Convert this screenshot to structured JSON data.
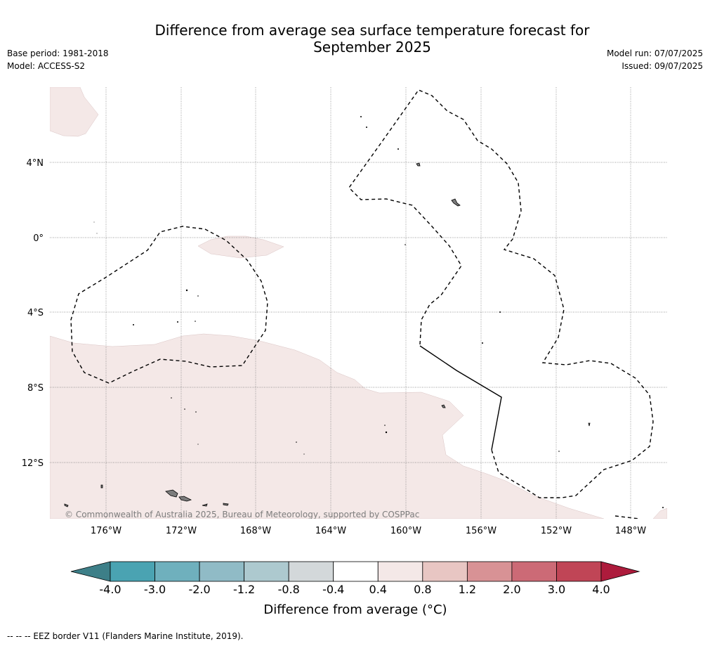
{
  "header": {
    "title_line1": "Difference from average sea surface temperature forecast for",
    "title_line2": "September 2025",
    "base_period": "Base period: 1981-2018",
    "model": "Model: ACCESS-S2",
    "model_run": "Model run: 07/07/2025",
    "issued": "Issued: 09/07/2025"
  },
  "map": {
    "lat_labels": [
      "4°N",
      "0°",
      "4°S",
      "8°S",
      "12°S"
    ],
    "lon_labels": [
      "176°W",
      "172°W",
      "168°W",
      "164°W",
      "160°W",
      "156°W",
      "152°W",
      "148°W"
    ],
    "copyright": "© Commonwealth of Australia 2025, Bureau of Meteorology, supported by COSPPac"
  },
  "colorbar": {
    "ticks": [
      "-4.0",
      "-3.0",
      "-2.0",
      "-1.2",
      "-0.8",
      "-0.4",
      "0.4",
      "0.8",
      "1.2",
      "2.0",
      "3.0",
      "4.0"
    ],
    "label": "Difference from average (°C)",
    "colors": {
      "below_min": "#3d7f88",
      "bins": [
        "#4aa3b2",
        "#6fb0bd",
        "#90bbc6",
        "#adc9cf",
        "#d3d8da",
        "#ffffff",
        "#f4e8e7",
        "#e8c6c3",
        "#d89295",
        "#cc6a76",
        "#c04556"
      ],
      "above_max": "#ad1b3c"
    }
  },
  "footer": {
    "legend_text": "--  --  -- EEZ border V11 (Flanders Marine Institute, 2019)."
  }
}
